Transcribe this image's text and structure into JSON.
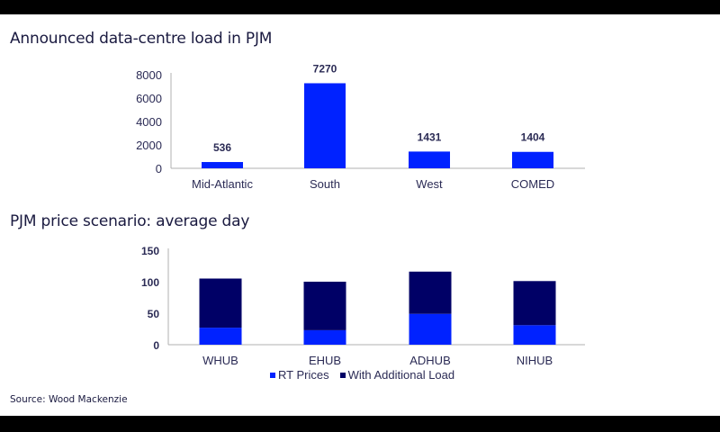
{
  "page": {
    "title_top": "Announced data-centre load in PJM",
    "title_bottom": "PJM price scenario: average day",
    "source": "Source: Wood Mackenzie"
  },
  "colors": {
    "bright_blue": "#0022ff",
    "navy": "#000066",
    "axis": "#b0b0b0",
    "text": "#2b2b55"
  },
  "chart_data": [
    {
      "type": "bar",
      "title": "Announced data-centre load in PJM",
      "categories": [
        "Mid-Atlantic",
        "South",
        "West",
        "COMED"
      ],
      "values": [
        536,
        7270,
        1431,
        1404
      ],
      "data_labels": [
        "536",
        "7270",
        "1431",
        "1404"
      ],
      "xlabel": "",
      "ylabel": "",
      "ylim": [
        0,
        8000
      ],
      "yticks": [
        "0",
        "2000",
        "4000",
        "6000",
        "8000"
      ],
      "grid": false,
      "legend": null
    },
    {
      "type": "bar",
      "stacked": true,
      "title": "PJM price scenario: average day",
      "categories": [
        "WHUB",
        "EHUB",
        "ADHUB",
        "NIHUB"
      ],
      "series": [
        {
          "name": "RT Prices",
          "values": [
            27,
            23,
            49,
            31
          ]
        },
        {
          "name": "With Additional Load",
          "values": [
            78,
            77,
            67,
            70
          ]
        }
      ],
      "totals": [
        105,
        100,
        116,
        101
      ],
      "xlabel": "",
      "ylabel": "",
      "ylim": [
        0,
        150
      ],
      "yticks": [
        "0",
        "50",
        "100",
        "150"
      ],
      "grid": false,
      "legend": {
        "position": "bottom",
        "entries": [
          "RT Prices",
          "With Additional Load"
        ]
      }
    }
  ]
}
